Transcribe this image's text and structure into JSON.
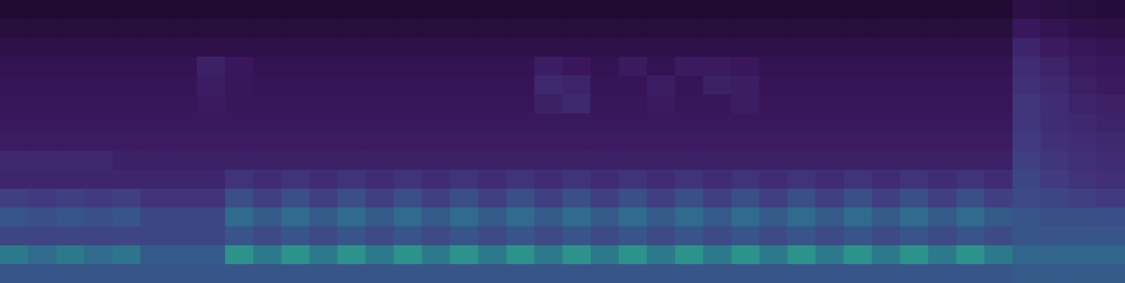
{
  "chart_data": {
    "type": "heatmap",
    "tick_labels": false,
    "zlim": [
      0,
      1
    ],
    "cells": [
      [
        0.02,
        0.02,
        0.02,
        0.02,
        0.02,
        0.02,
        0.02,
        0.02,
        0.02,
        0.02,
        0.02,
        0.02,
        0.02,
        0.02,
        0.02,
        0.02,
        0.02,
        0.02,
        0.02,
        0.02,
        0.02,
        0.02,
        0.02,
        0.02,
        0.02,
        0.02,
        0.02,
        0.02,
        0.02,
        0.02,
        0.02,
        0.02,
        0.02,
        0.02,
        0.02,
        0.02,
        0.1,
        0.08,
        0.06,
        0.05
      ],
      [
        0.06,
        0.06,
        0.06,
        0.06,
        0.06,
        0.06,
        0.06,
        0.06,
        0.06,
        0.06,
        0.06,
        0.06,
        0.06,
        0.06,
        0.06,
        0.06,
        0.06,
        0.06,
        0.06,
        0.06,
        0.06,
        0.06,
        0.06,
        0.06,
        0.06,
        0.06,
        0.06,
        0.06,
        0.06,
        0.06,
        0.06,
        0.06,
        0.06,
        0.06,
        0.06,
        0.06,
        0.2,
        0.15,
        0.12,
        0.1
      ],
      [
        0.11,
        0.11,
        0.11,
        0.11,
        0.11,
        0.11,
        0.11,
        0.11,
        0.11,
        0.11,
        0.11,
        0.11,
        0.11,
        0.11,
        0.11,
        0.11,
        0.11,
        0.11,
        0.11,
        0.11,
        0.11,
        0.11,
        0.11,
        0.11,
        0.11,
        0.11,
        0.11,
        0.11,
        0.11,
        0.11,
        0.11,
        0.11,
        0.11,
        0.11,
        0.11,
        0.11,
        0.28,
        0.22,
        0.18,
        0.15
      ],
      [
        0.15,
        0.15,
        0.15,
        0.15,
        0.15,
        0.15,
        0.15,
        0.26,
        0.2,
        0.15,
        0.15,
        0.15,
        0.15,
        0.15,
        0.15,
        0.15,
        0.15,
        0.15,
        0.15,
        0.24,
        0.2,
        0.15,
        0.22,
        0.15,
        0.22,
        0.22,
        0.2,
        0.15,
        0.15,
        0.15,
        0.15,
        0.15,
        0.15,
        0.15,
        0.15,
        0.15,
        0.32,
        0.27,
        0.22,
        0.2
      ],
      [
        0.17,
        0.17,
        0.17,
        0.17,
        0.17,
        0.17,
        0.17,
        0.24,
        0.19,
        0.17,
        0.17,
        0.17,
        0.17,
        0.17,
        0.17,
        0.17,
        0.17,
        0.17,
        0.17,
        0.3,
        0.28,
        0.17,
        0.17,
        0.24,
        0.17,
        0.26,
        0.24,
        0.17,
        0.17,
        0.17,
        0.17,
        0.17,
        0.17,
        0.17,
        0.17,
        0.17,
        0.35,
        0.3,
        0.25,
        0.22
      ],
      [
        0.19,
        0.19,
        0.19,
        0.19,
        0.19,
        0.19,
        0.19,
        0.22,
        0.19,
        0.19,
        0.19,
        0.19,
        0.19,
        0.19,
        0.19,
        0.19,
        0.19,
        0.19,
        0.19,
        0.26,
        0.3,
        0.19,
        0.19,
        0.22,
        0.19,
        0.19,
        0.24,
        0.19,
        0.19,
        0.19,
        0.19,
        0.19,
        0.19,
        0.19,
        0.19,
        0.19,
        0.37,
        0.32,
        0.28,
        0.25
      ],
      [
        0.21,
        0.21,
        0.21,
        0.21,
        0.21,
        0.21,
        0.21,
        0.21,
        0.21,
        0.21,
        0.21,
        0.21,
        0.21,
        0.21,
        0.21,
        0.21,
        0.21,
        0.21,
        0.21,
        0.21,
        0.21,
        0.21,
        0.21,
        0.21,
        0.21,
        0.21,
        0.21,
        0.21,
        0.21,
        0.21,
        0.21,
        0.21,
        0.21,
        0.21,
        0.21,
        0.21,
        0.38,
        0.33,
        0.3,
        0.28
      ],
      [
        0.23,
        0.23,
        0.23,
        0.23,
        0.23,
        0.23,
        0.23,
        0.23,
        0.23,
        0.23,
        0.23,
        0.23,
        0.23,
        0.23,
        0.23,
        0.23,
        0.23,
        0.23,
        0.23,
        0.23,
        0.23,
        0.23,
        0.23,
        0.23,
        0.23,
        0.23,
        0.23,
        0.23,
        0.23,
        0.23,
        0.23,
        0.23,
        0.23,
        0.23,
        0.23,
        0.23,
        0.4,
        0.35,
        0.32,
        0.3
      ],
      [
        0.3,
        0.3,
        0.3,
        0.3,
        0.26,
        0.26,
        0.26,
        0.26,
        0.26,
        0.26,
        0.26,
        0.26,
        0.26,
        0.26,
        0.26,
        0.26,
        0.26,
        0.26,
        0.26,
        0.26,
        0.26,
        0.26,
        0.26,
        0.26,
        0.26,
        0.26,
        0.26,
        0.26,
        0.26,
        0.26,
        0.26,
        0.26,
        0.26,
        0.26,
        0.26,
        0.26,
        0.42,
        0.37,
        0.34,
        0.32
      ],
      [
        0.29,
        0.29,
        0.29,
        0.29,
        0.29,
        0.29,
        0.29,
        0.29,
        0.36,
        0.32,
        0.36,
        0.32,
        0.36,
        0.32,
        0.36,
        0.32,
        0.36,
        0.32,
        0.36,
        0.32,
        0.36,
        0.32,
        0.36,
        0.32,
        0.36,
        0.32,
        0.36,
        0.32,
        0.36,
        0.32,
        0.36,
        0.32,
        0.36,
        0.32,
        0.36,
        0.32,
        0.44,
        0.4,
        0.36,
        0.34
      ],
      [
        0.42,
        0.4,
        0.42,
        0.4,
        0.42,
        0.36,
        0.36,
        0.36,
        0.48,
        0.42,
        0.48,
        0.42,
        0.48,
        0.42,
        0.48,
        0.42,
        0.48,
        0.42,
        0.48,
        0.42,
        0.48,
        0.42,
        0.48,
        0.42,
        0.48,
        0.42,
        0.48,
        0.42,
        0.48,
        0.42,
        0.48,
        0.42,
        0.48,
        0.42,
        0.48,
        0.42,
        0.46,
        0.44,
        0.42,
        0.4
      ],
      [
        0.5,
        0.48,
        0.5,
        0.48,
        0.5,
        0.44,
        0.44,
        0.44,
        0.58,
        0.52,
        0.58,
        0.52,
        0.58,
        0.52,
        0.58,
        0.52,
        0.58,
        0.52,
        0.58,
        0.52,
        0.58,
        0.52,
        0.58,
        0.52,
        0.58,
        0.52,
        0.58,
        0.52,
        0.58,
        0.52,
        0.58,
        0.52,
        0.58,
        0.52,
        0.58,
        0.52,
        0.5,
        0.48,
        0.48,
        0.47
      ],
      [
        0.44,
        0.44,
        0.44,
        0.44,
        0.44,
        0.44,
        0.44,
        0.44,
        0.5,
        0.46,
        0.5,
        0.46,
        0.5,
        0.46,
        0.5,
        0.46,
        0.5,
        0.46,
        0.5,
        0.46,
        0.5,
        0.46,
        0.5,
        0.46,
        0.5,
        0.46,
        0.5,
        0.46,
        0.5,
        0.46,
        0.5,
        0.46,
        0.5,
        0.46,
        0.5,
        0.46,
        0.5,
        0.5,
        0.5,
        0.5
      ],
      [
        0.64,
        0.58,
        0.64,
        0.58,
        0.62,
        0.52,
        0.52,
        0.52,
        0.74,
        0.64,
        0.74,
        0.64,
        0.74,
        0.64,
        0.74,
        0.64,
        0.74,
        0.64,
        0.74,
        0.64,
        0.74,
        0.64,
        0.74,
        0.64,
        0.74,
        0.64,
        0.74,
        0.64,
        0.74,
        0.64,
        0.74,
        0.64,
        0.74,
        0.64,
        0.74,
        0.64,
        0.56,
        0.56,
        0.56,
        0.56
      ],
      [
        0.5,
        0.5,
        0.5,
        0.5,
        0.5,
        0.5,
        0.5,
        0.5,
        0.5,
        0.5,
        0.5,
        0.5,
        0.5,
        0.5,
        0.5,
        0.5,
        0.5,
        0.5,
        0.5,
        0.5,
        0.5,
        0.5,
        0.5,
        0.5,
        0.5,
        0.5,
        0.5,
        0.5,
        0.5,
        0.5,
        0.5,
        0.5,
        0.5,
        0.5,
        0.5,
        0.5,
        0.52,
        0.52,
        0.52,
        0.52
      ]
    ]
  }
}
